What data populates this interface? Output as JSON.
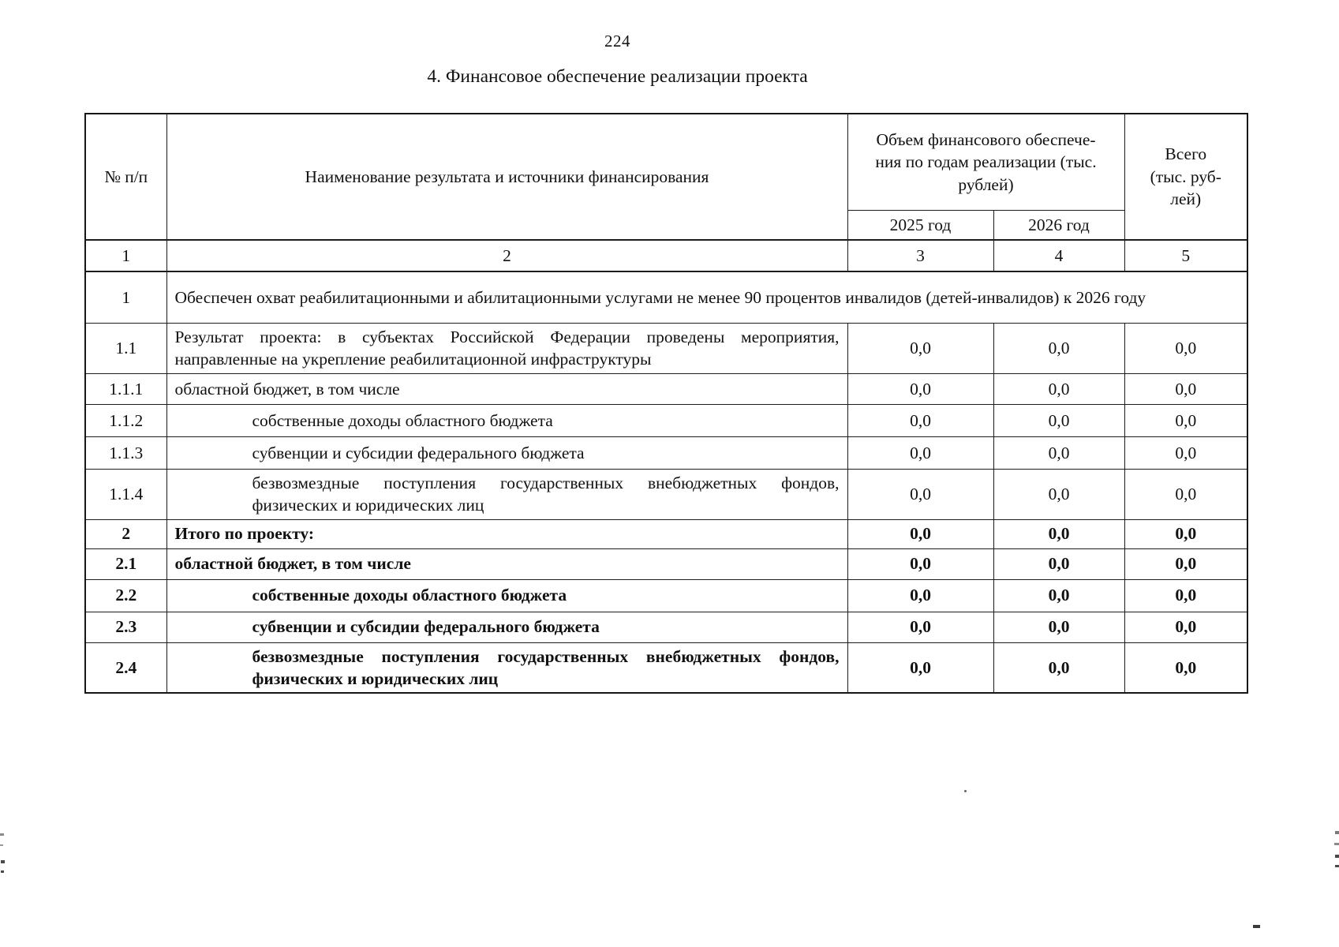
{
  "page": {
    "number": "224",
    "title": "4. Финансовое обеспечение реализации проекта"
  },
  "table": {
    "header": {
      "col_num": "№ п/п",
      "col_name": "Наименование результата и источники финансирования",
      "col_volume": "Объем финансового обеспече-\nния по годам реализации (тыс.\nрублей)",
      "col_year_2025": "2025 год",
      "col_year_2026": "2026 год",
      "col_total": "Всего\n(тыс. руб-\nлей)"
    },
    "index_row": [
      "1",
      "2",
      "3",
      "4",
      "5"
    ],
    "rows": [
      {
        "num": "1",
        "merged": true,
        "justify": true,
        "name": "Обеспечен охват реабилитационными и абилитационными услугами не менее 90 процентов инвалидов (детей-инвалидов) к 2026 году"
      },
      {
        "num": "1.1",
        "justify": true,
        "name": "Результат проекта: в субъектах Российской Федерации проведены мероприятия, направленные на укрепление реабилитационной инфраструктуры",
        "y2025": "0,0",
        "y2026": "0,0",
        "total": "0,0"
      },
      {
        "num": "1.1.1",
        "name": "областной бюджет, в том числе",
        "y2025": "0,0",
        "y2026": "0,0",
        "total": "0,0"
      },
      {
        "num": "1.1.2",
        "indent": true,
        "name": "собственные доходы областного бюджета",
        "y2025": "0,0",
        "y2026": "0,0",
        "total": "0,0"
      },
      {
        "num": "1.1.3",
        "indent": true,
        "name": "субвенции и субсидии федерального бюджета",
        "y2025": "0,0",
        "y2026": "0,0",
        "total": "0,0"
      },
      {
        "num": "1.1.4",
        "indent": true,
        "justify": true,
        "name": "безвозмездные поступления государственных внебюджетных фондов, физических и юридических лиц",
        "y2025": "0,0",
        "y2026": "0,0",
        "total": "0,0"
      },
      {
        "num": "2",
        "bold": true,
        "name": "Итого по проекту:",
        "y2025": "0,0",
        "y2026": "0,0",
        "total": "0,0"
      },
      {
        "num": "2.1",
        "bold": true,
        "name": "областной бюджет, в том числе",
        "y2025": "0,0",
        "y2026": "0,0",
        "total": "0,0"
      },
      {
        "num": "2.2",
        "bold": true,
        "indent": true,
        "name": "собственные доходы областного бюджета",
        "y2025": "0,0",
        "y2026": "0,0",
        "total": "0,0"
      },
      {
        "num": "2.3",
        "bold": true,
        "indent": true,
        "name": "субвенции и субсидии федерального бюджета",
        "y2025": "0,0",
        "y2026": "0,0",
        "total": "0,0"
      },
      {
        "num": "2.4",
        "bold": true,
        "indent": true,
        "justify": true,
        "name": "безвозмездные поступления государственных внебюджетных фондов, физических и юридических лиц",
        "y2025": "0,0",
        "y2026": "0,0",
        "total": "0,0"
      }
    ]
  }
}
